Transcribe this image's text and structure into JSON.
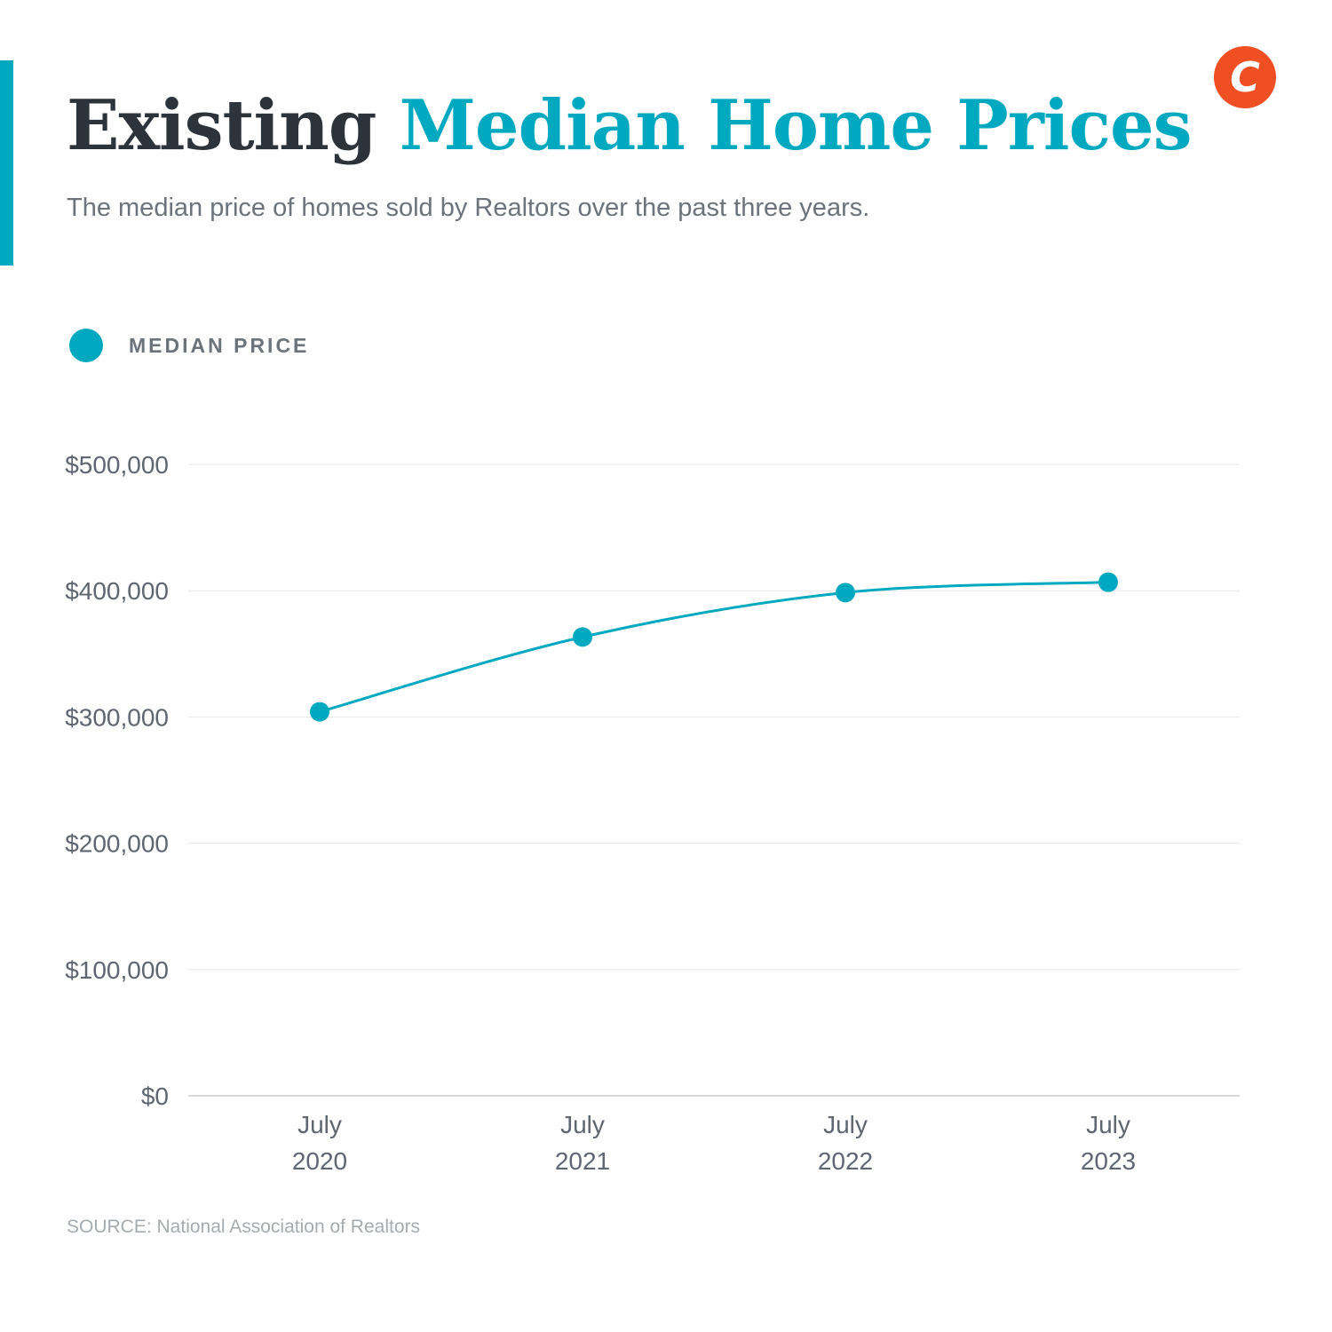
{
  "header": {
    "title_part1": "Existing",
    "title_part2": "Median Home Prices",
    "subtitle": "The median price of homes sold by Realtors over the past three years."
  },
  "logo": {
    "glyph": "C",
    "icon": "brand-c-logo-icon"
  },
  "legend": {
    "label": "MEDIAN PRICE"
  },
  "source": "SOURCE: National Association of Realtors",
  "colors": {
    "accent": "#00a9c0",
    "title_dark": "#2d333b",
    "text_gray": "#6d737a",
    "axis_text": "#5f6670",
    "source_text": "#a6abb0",
    "gridline": "#e6e8ea",
    "baseline": "#c8cbcf",
    "logo_bg": "#f04e23"
  },
  "chart_data": {
    "type": "line",
    "title": "Existing Median Home Prices",
    "x": [
      [
        "July",
        "2020"
      ],
      [
        "July",
        "2021"
      ],
      [
        "July",
        "2022"
      ],
      [
        "July",
        "2023"
      ]
    ],
    "series": [
      {
        "name": "MEDIAN PRICE",
        "values": [
          304100,
          363300,
          398500,
          406700
        ]
      }
    ],
    "yticks": [
      0,
      100000,
      200000,
      300000,
      400000,
      500000
    ],
    "ytick_labels": [
      "$0",
      "$100,000",
      "$200,000",
      "$300,000",
      "$400,000",
      "$500,000"
    ],
    "ylim": [
      0,
      500000
    ],
    "grid": true,
    "legend_position": "top-left",
    "xlabel": "",
    "ylabel": ""
  }
}
